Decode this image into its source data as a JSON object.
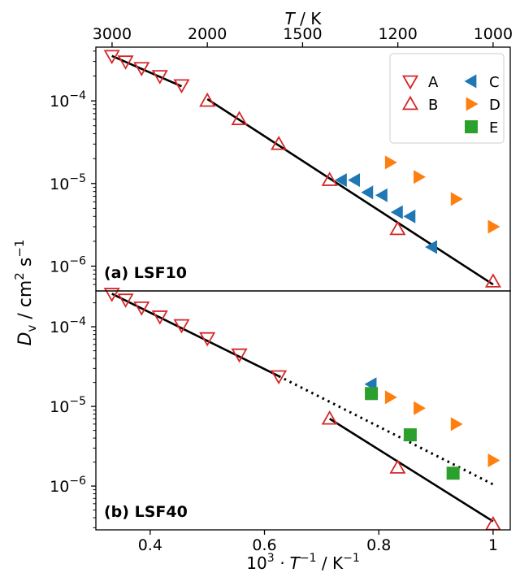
{
  "colors": {
    "A": "#d62728",
    "B": "#d62728",
    "C": "#1f77b4",
    "D": "#ff7f0e",
    "E": "#2ca02c",
    "fit": "#000000"
  },
  "chart_data": {
    "type": "scatter",
    "x": {
      "label_prefix": "10",
      "label_sup": "3",
      "label_mid": " · T",
      "label_sup2": "−1",
      "label_suffix": " / K",
      "label_sup3": "−1",
      "range": [
        0.305,
        1.03
      ],
      "ticks": [
        0.4,
        0.6,
        0.8,
        1.0
      ],
      "tick_labels": [
        "0.4",
        "0.6",
        "0.8",
        "1"
      ]
    },
    "x_top": {
      "label_T": "T",
      "label_rest": " / K",
      "ticks": [
        3000,
        2000,
        1500,
        1200,
        1000
      ],
      "tick_labels": [
        "3000",
        "2000",
        "1500",
        "1200",
        "1000"
      ]
    },
    "y": {
      "label_D": "D",
      "label_sub": "v",
      "label_rest": " / cm",
      "label_sup": "2",
      "label_s": " s",
      "label_sup2": "−1",
      "scale": "log"
    },
    "legend": {
      "placement": "top-right",
      "entries": [
        {
          "key": "A",
          "label": "A",
          "marker": "triangle-down-open"
        },
        {
          "key": "C",
          "label": "C",
          "marker": "triangle-left-filled"
        },
        {
          "key": "B",
          "label": "B",
          "marker": "triangle-up-open"
        },
        {
          "key": "D",
          "label": "D",
          "marker": "triangle-right-filled"
        },
        {
          "key": "E",
          "label": "E",
          "marker": "square-filled"
        }
      ]
    },
    "panels": [
      {
        "label": "(a) LSF10",
        "ylim_log10": [
          -6.3,
          -3.35
        ],
        "yticks": [
          -6,
          -5,
          -4
        ],
        "ytick_labels": [
          [
            "10",
            "−6"
          ],
          [
            "10",
            "−5"
          ],
          [
            "10",
            "−4"
          ]
        ],
        "series": [
          {
            "key": "A",
            "x": [
              0.333,
              0.357,
              0.385,
              0.417,
              0.455
            ],
            "y": [
              0.00035,
              0.0003,
              0.00025,
              0.0002,
              0.000155
            ]
          },
          {
            "key": "B",
            "x": [
              0.5,
              0.556,
              0.625,
              0.714,
              0.833,
              1.0
            ],
            "y": [
              0.0001,
              6e-05,
              3e-05,
              1.1e-05,
              2.8e-06,
              6.5e-07
            ]
          },
          {
            "key": "C",
            "x": [
              0.735,
              0.758,
              0.781,
              0.806,
              0.833,
              0.855,
              0.893
            ],
            "y": [
              1.1e-05,
              1.1e-05,
              7.8e-06,
              7.2e-06,
              4.5e-06,
              4e-06,
              1.7e-06
            ]
          },
          {
            "key": "D",
            "x": [
              0.82,
              0.87,
              0.935,
              1.0
            ],
            "y": [
              1.8e-05,
              1.2e-05,
              6.5e-06,
              3e-06
            ]
          }
        ],
        "fits": [
          {
            "style": "solid",
            "x": [
              0.333,
              0.455
            ],
            "y": [
              0.00035,
              0.00015
            ]
          },
          {
            "style": "solid",
            "x": [
              0.5,
              1.0
            ],
            "y": [
              0.000105,
              6e-07
            ]
          }
        ]
      },
      {
        "label": "(b) LSF40",
        "ylim_log10": [
          -6.55,
          -3.55
        ],
        "yticks": [
          -6,
          -5,
          -4
        ],
        "ytick_labels": [
          [
            "10",
            "−6"
          ],
          [
            "10",
            "−5"
          ],
          [
            "10",
            "−4"
          ]
        ],
        "series": [
          {
            "key": "A",
            "x": [
              0.333,
              0.357,
              0.385,
              0.417,
              0.455,
              0.5,
              0.556,
              0.625
            ],
            "y": [
              0.00026,
              0.00022,
              0.000175,
              0.000135,
              0.000105,
              7.2e-05,
              4.5e-05,
              2.4e-05
            ]
          },
          {
            "key": "B",
            "x": [
              0.714,
              0.833,
              1.0
            ],
            "y": [
              7e-06,
              1.7e-06,
              3.3e-07
            ]
          },
          {
            "key": "C",
            "x": [
              0.787
            ],
            "y": [
              1.9e-05
            ]
          },
          {
            "key": "D",
            "x": [
              0.82,
              0.87,
              0.935,
              1.0
            ],
            "y": [
              1.3e-05,
              9.5e-06,
              6e-06,
              2.1e-06
            ]
          },
          {
            "key": "E",
            "x": [
              0.787,
              0.855,
              0.93
            ],
            "y": [
              1.45e-05,
              4.4e-06,
              1.45e-06
            ]
          }
        ],
        "fits": [
          {
            "style": "solid",
            "x": [
              0.333,
              0.625
            ],
            "y": [
              0.00026,
              2.4e-05
            ]
          },
          {
            "style": "dotted",
            "x": [
              0.625,
              1.0
            ],
            "y": [
              2.4e-05,
              1.05e-06
            ]
          },
          {
            "style": "solid",
            "x": [
              0.714,
              1.0
            ],
            "y": [
              7e-06,
              3.6e-07
            ]
          }
        ]
      }
    ]
  }
}
